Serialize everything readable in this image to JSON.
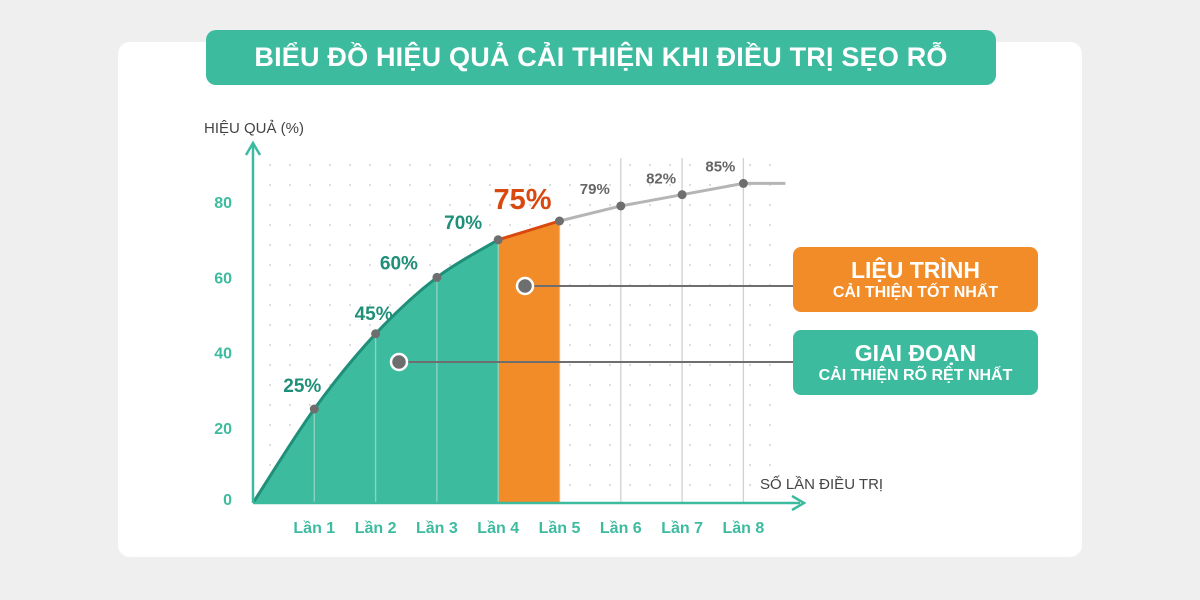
{
  "title": "BIỂU ĐỒ HIỆU QUẢ CẢI THIỆN KHI ĐIỀU TRỊ SẸO RỖ",
  "colors": {
    "teal": "#3dbb9f",
    "teal_dark": "#1f8f79",
    "orange": "#f28c28",
    "orange_text": "#d9480f",
    "gray_line": "#b5b5b5",
    "gray_point": "#6e6e6e"
  },
  "callouts": {
    "best_course": {
      "line1": "LIỆU TRÌNH",
      "line2": "CẢI THIỆN TỐT NHẤT"
    },
    "clearest_phase": {
      "line1": "GIAI ĐOẠN",
      "line2": "CẢI THIỆN RÕ RỆT NHẤT"
    }
  },
  "chart_data": {
    "type": "line",
    "ylabel": "HIỆU QUẢ (%)",
    "xlabel": "SỐ LẦN ĐIỀU TRỊ",
    "categories": [
      "Lần 1",
      "Lần 2",
      "Lần 3",
      "Lần 4",
      "Lần 5",
      "Lần 6",
      "Lần 7",
      "Lần 8"
    ],
    "values": [
      25,
      45,
      60,
      70,
      75,
      79,
      82,
      85
    ],
    "point_labels": [
      "25%",
      "45%",
      "60%",
      "70%",
      "75%",
      "79%",
      "82%",
      "85%"
    ],
    "origin_value": 0,
    "y_ticks": [
      0,
      20,
      40,
      60,
      80
    ],
    "ylim": [
      0,
      95
    ],
    "grid": true,
    "highlighted_regions": [
      {
        "name": "GIAI ĐOẠN CẢI THIỆN RÕ RỆT NHẤT",
        "from": "0",
        "to": "Lần 4",
        "color": "#3dbb9f"
      },
      {
        "name": "LIỆU TRÌNH CẢI THIỆN TỐT NHẤT",
        "from": "Lần 4",
        "to": "Lần 5",
        "color": "#f28c28"
      }
    ]
  }
}
